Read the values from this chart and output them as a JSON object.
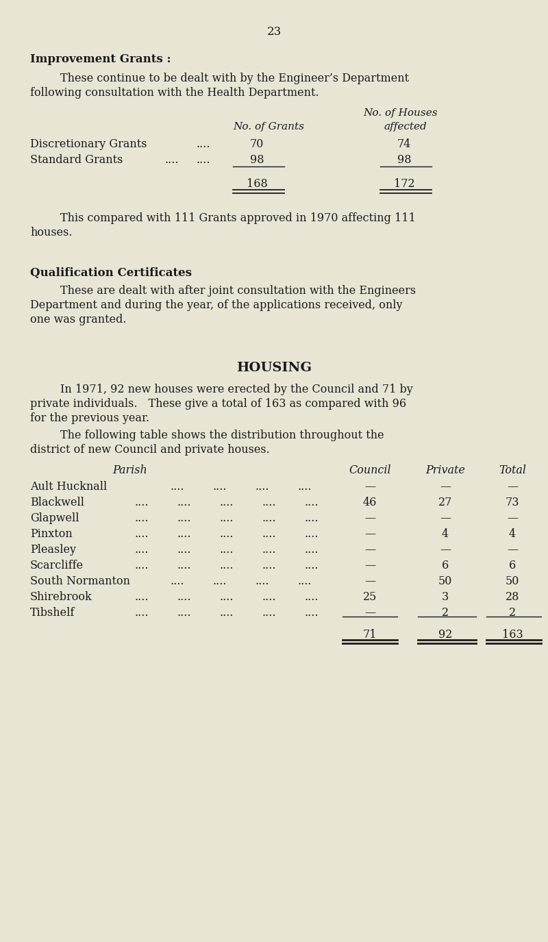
{
  "bg_color": "#e8e5d5",
  "text_color": "#1a1a1a",
  "page_number": "23",
  "section1_title": "Improvement Grants :",
  "col_header1": "No. of Grants",
  "col_header2_line1": "No. of Houses",
  "col_header2_line2": "affected",
  "row1_label": "Discretionary Grants",
  "row1_dots": "....",
  "row1_v1": "70",
  "row1_v2": "74",
  "row2_label": "Standard Grants",
  "row2_dots1": "....",
  "row2_dots2": "....",
  "row2_v1": "98",
  "row2_v2": "98",
  "total1": "168",
  "total2": "172",
  "section2_title": "Qualification Certificates",
  "section3_title": "HOUSING",
  "table2_rows": [
    [
      "Ault Hucknall",
      "—",
      "—",
      "—"
    ],
    [
      "Blackwell",
      "46",
      "27",
      "73"
    ],
    [
      "Glapwell",
      "—",
      "—",
      "—"
    ],
    [
      "Pinxton",
      "—",
      "4",
      "4"
    ],
    [
      "Pleasley",
      "—",
      "—",
      "—"
    ],
    [
      "Scarcliffe",
      "—",
      "6",
      "6"
    ],
    [
      "South Normanton",
      "—",
      "50",
      "50"
    ],
    [
      "Shirebrook",
      "25",
      "3",
      "28"
    ],
    [
      "Tibshelf",
      "—",
      "2",
      "2"
    ]
  ],
  "table2_totals": [
    "71",
    "92",
    "163"
  ],
  "dots_short": [
    false,
    true,
    true,
    true,
    true,
    true,
    false,
    true,
    true
  ]
}
